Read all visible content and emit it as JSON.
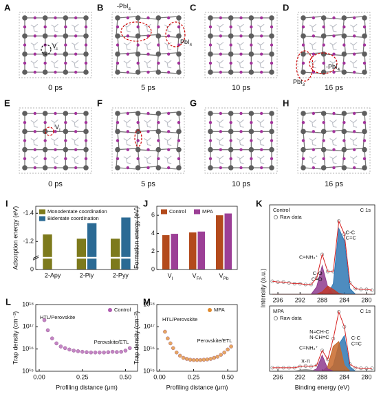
{
  "structures": [
    {
      "label": "A",
      "time": "0 ps",
      "annotations": [
        {
          "base": "V",
          "sub": "I"
        }
      ]
    },
    {
      "label": "B",
      "time": "5 ps",
      "annotations": [
        {
          "base": "-PbI",
          "sub": "4"
        },
        {
          "base": "PbI",
          "sub": "4"
        }
      ]
    },
    {
      "label": "C",
      "time": "10 ps"
    },
    {
      "label": "D",
      "time": "16 ps",
      "annotations": [
        {
          "base": "-PbI",
          "sub": "4"
        },
        {
          "base": "PbI",
          "sub": "3"
        }
      ]
    },
    {
      "label": "E",
      "time": "0 ps",
      "annotations": [
        {
          "base": "V",
          "sub": "I"
        }
      ]
    },
    {
      "label": "F",
      "time": "5 ps"
    },
    {
      "label": "G",
      "time": "10 ps"
    },
    {
      "label": "H",
      "time": "16 ps"
    }
  ],
  "chart_data": [
    {
      "panel_label": "I",
      "type": "bar",
      "ylabel": "Adsorption energy (eV)",
      "categories": [
        "2-Apy",
        "2-Piy",
        "2-Pyy"
      ],
      "series": [
        {
          "name": "Monodentate coordination",
          "color": "#7d7a1c",
          "values": [
            -1.25,
            -1.22,
            -1.22
          ]
        },
        {
          "name": "Bidentate coordination",
          "color": "#2b6a94",
          "values": [
            null,
            -1.33,
            -1.37
          ]
        }
      ],
      "ylim": [
        0,
        -1.45
      ],
      "ybreak": [
        -0.1,
        -1.1
      ],
      "yticks": [
        0,
        -1.2,
        -1.4
      ],
      "legend": "upper left"
    },
    {
      "panel_label": "J",
      "type": "bar",
      "ylabel": "Formation energy (eV)",
      "categories": [
        {
          "base": "V",
          "sub": "I"
        },
        {
          "base": "V",
          "sub": "FA"
        },
        {
          "base": "V",
          "sub": "Pb"
        }
      ],
      "series": [
        {
          "name": "Control",
          "color": "#b34a1c",
          "values": [
            3.8,
            4.1,
            6.0
          ]
        },
        {
          "name": "MPA",
          "color": "#9c3f96",
          "values": [
            3.95,
            4.2,
            6.2
          ]
        }
      ],
      "ylim": [
        0,
        7
      ],
      "yticks": [
        0,
        2,
        4,
        6
      ],
      "legend": "upper left"
    },
    {
      "panel_label": "K",
      "type": "line",
      "ylabel": "Intensity (a.u.)",
      "legend_title": "Control",
      "label": "C 1s",
      "x": [
        297,
        296,
        295,
        294,
        293,
        292,
        291,
        290,
        289,
        288,
        287,
        286,
        285,
        284,
        283,
        282,
        281,
        280,
        279
      ],
      "xlim": [
        297.5,
        278.5
      ],
      "xticks": [
        296,
        292,
        288,
        284,
        280
      ],
      "ylim": [
        0,
        1.1
      ],
      "series": [
        {
          "name": "Raw data",
          "color": "#8a8a8a",
          "line_color": "#d62020",
          "values": [
            0.16,
            0.15,
            0.15,
            0.14,
            0.13,
            0.13,
            0.12,
            0.12,
            0.2,
            0.49,
            0.28,
            0.28,
            0.9,
            0.74,
            0.14,
            0.07,
            0.06,
            0.06,
            0.05
          ]
        },
        {
          "name": "C-C\nC=C",
          "color": "#2f78b4",
          "fill": true,
          "values": [
            0,
            0,
            0,
            0,
            0,
            0,
            0,
            0,
            0,
            0,
            0,
            0.13,
            0.81,
            0.66,
            0.07,
            0,
            0,
            0,
            0
          ]
        },
        {
          "name": "C=NH₂⁺",
          "color": "#8e3b8e",
          "fill": true,
          "values": [
            0,
            0,
            0,
            0,
            0,
            0,
            0,
            0,
            0.09,
            0.35,
            0.09,
            0,
            0,
            0,
            0,
            0,
            0,
            0,
            0
          ]
        },
        {
          "name": "C-O\nC=O",
          "color": "#c03a2b",
          "fill": true,
          "values": [
            0,
            0,
            0,
            0,
            0,
            0,
            0,
            0,
            0,
            0.03,
            0.1,
            0.06,
            0.01,
            0,
            0,
            0,
            0,
            0,
            0
          ]
        }
      ],
      "legend": "upper left"
    },
    {
      "type": "line",
      "xlabel": "Binding energy (eV)",
      "legend_title": "MPA",
      "label": "C 1s",
      "x": [
        297,
        296,
        295,
        294,
        293,
        292,
        291,
        290,
        289,
        288,
        287,
        286,
        285,
        284,
        283,
        282,
        281,
        280,
        279
      ],
      "xlim": [
        297.5,
        278.5
      ],
      "xticks": [
        296,
        292,
        288,
        284,
        280
      ],
      "ylim": [
        0,
        1.1
      ],
      "series": [
        {
          "name": "Raw data",
          "color": "#8a8a8a",
          "line_color": "#d62020",
          "values": [
            0.06,
            0.06,
            0.06,
            0.06,
            0.06,
            0.08,
            0.09,
            0.08,
            0.1,
            0.35,
            0.2,
            0.55,
            1.0,
            0.75,
            0.12,
            0.06,
            0.05,
            0.05,
            0.05
          ]
        },
        {
          "name": "C-C\nC=C",
          "color": "#2f78b4",
          "fill": true,
          "values": [
            0,
            0,
            0,
            0,
            0,
            0,
            0,
            0,
            0,
            0,
            0,
            0.1,
            0.45,
            0.6,
            0.08,
            0,
            0,
            0,
            0
          ]
        },
        {
          "name": "N=CH-C\nN-CH=C",
          "color": "#c8692a",
          "fill": true,
          "values": [
            0,
            0,
            0,
            0,
            0,
            0,
            0,
            0,
            0,
            0,
            0.08,
            0.42,
            0.5,
            0.1,
            0,
            0,
            0,
            0,
            0
          ]
        },
        {
          "name": "C=NH₂⁺",
          "color": "#8e3b8e",
          "fill": true,
          "values": [
            0,
            0,
            0,
            0,
            0,
            0,
            0,
            0,
            0.04,
            0.27,
            0.04,
            0,
            0,
            0,
            0,
            0,
            0,
            0,
            0
          ]
        },
        {
          "name": "π-π",
          "color": "#9a9a9a",
          "fill": true,
          "values": [
            0,
            0,
            0,
            0,
            0,
            0.02,
            0.03,
            0.02,
            0,
            0,
            0,
            0,
            0,
            0,
            0,
            0,
            0,
            0,
            0
          ]
        }
      ],
      "legend": "upper left"
    },
    {
      "panel_label": "L",
      "type": "scatter",
      "ylabel": "Trap density (cm⁻³)",
      "xlabel": "Profiling distance (μm)",
      "x": [
        0.03,
        0.05,
        0.075,
        0.1,
        0.125,
        0.15,
        0.175,
        0.2,
        0.225,
        0.25,
        0.275,
        0.3,
        0.325,
        0.35,
        0.375,
        0.4,
        0.425,
        0.45,
        0.475,
        0.5,
        0.525
      ],
      "series": [
        {
          "name": "Control",
          "color": "#b05cb0",
          "values": [
            2e+17,
            7e+16,
            3e+16,
            1.8e+16,
            1.3e+16,
            1.1e+16,
            9500000000000000.0,
            8500000000000000.0,
            8000000000000000.0,
            7500000000000000.0,
            7200000000000000.0,
            7000000000000000.0,
            7000000000000000.0,
            7000000000000000.0,
            7000000000000000.0,
            7200000000000000.0,
            7500000000000000.0,
            7300000000000000.0,
            7500000000000000.0,
            8500000000000000.0,
            1.1e+16
          ]
        }
      ],
      "ylog": true,
      "ylim": [
        1000000000000000.0,
        1e+18
      ],
      "yticks": [
        {
          "value": 1000000000000000.0,
          "label": "10¹⁵"
        },
        {
          "value": 1e+16,
          "label": "10¹⁶"
        },
        {
          "value": 1e+17,
          "label": "10¹⁷"
        },
        {
          "value": 1e+18,
          "label": "10¹⁸"
        }
      ],
      "xlim": [
        -0.02,
        0.57
      ],
      "xticks": [
        {
          "value": 0,
          "label": "0.00"
        },
        0.25,
        {
          "value": 0.5,
          "label": "0.50"
        }
      ],
      "annotations": [
        "HTL/Perovskite",
        "Perovskite/ETL"
      ],
      "legend": "upper right"
    },
    {
      "panel_label": "M",
      "type": "scatter",
      "ylabel": "Trap density (cm⁻³)",
      "xlabel": "Profiling distance (μm)",
      "x": [
        0.04,
        0.06,
        0.08,
        0.1,
        0.125,
        0.15,
        0.175,
        0.2,
        0.225,
        0.25,
        0.275,
        0.3,
        0.325,
        0.35,
        0.375,
        0.4,
        0.425,
        0.45,
        0.475,
        0.5,
        0.525
      ],
      "series": [
        {
          "name": "MPA",
          "color": "#e08a2e",
          "values": [
            6e+16,
            3e+16,
            1.8e+16,
            1.1e+16,
            7000000000000000.0,
            5000000000000000.0,
            4000000000000000.0,
            3600000000000000.0,
            3300000000000000.0,
            3200000000000000.0,
            3200000000000000.0,
            3200000000000000.0,
            3300000000000000.0,
            3400000000000000.0,
            3600000000000000.0,
            4000000000000000.0,
            4500000000000000.0,
            5500000000000000.0,
            7000000000000000.0,
            9500000000000000.0,
            1.3e+16
          ]
        }
      ],
      "ylog": true,
      "ylim": [
        1000000000000000.0,
        1e+18
      ],
      "yticks": [
        {
          "value": 1000000000000000.0,
          "label": "10¹⁵"
        },
        {
          "value": 1e+16,
          "label": "10¹⁶"
        },
        {
          "value": 1e+17,
          "label": "10¹⁷"
        },
        {
          "value": 1e+18,
          "label": "10¹⁸"
        }
      ],
      "xlim": [
        -0.02,
        0.57
      ],
      "xticks": [
        {
          "value": 0,
          "label": "0.00"
        },
        0.25,
        {
          "value": 0.5,
          "label": "0.50"
        }
      ],
      "annotations": [
        "HTL/Perovskite",
        "Perovskite/ETL"
      ],
      "legend": "upper right"
    }
  ]
}
